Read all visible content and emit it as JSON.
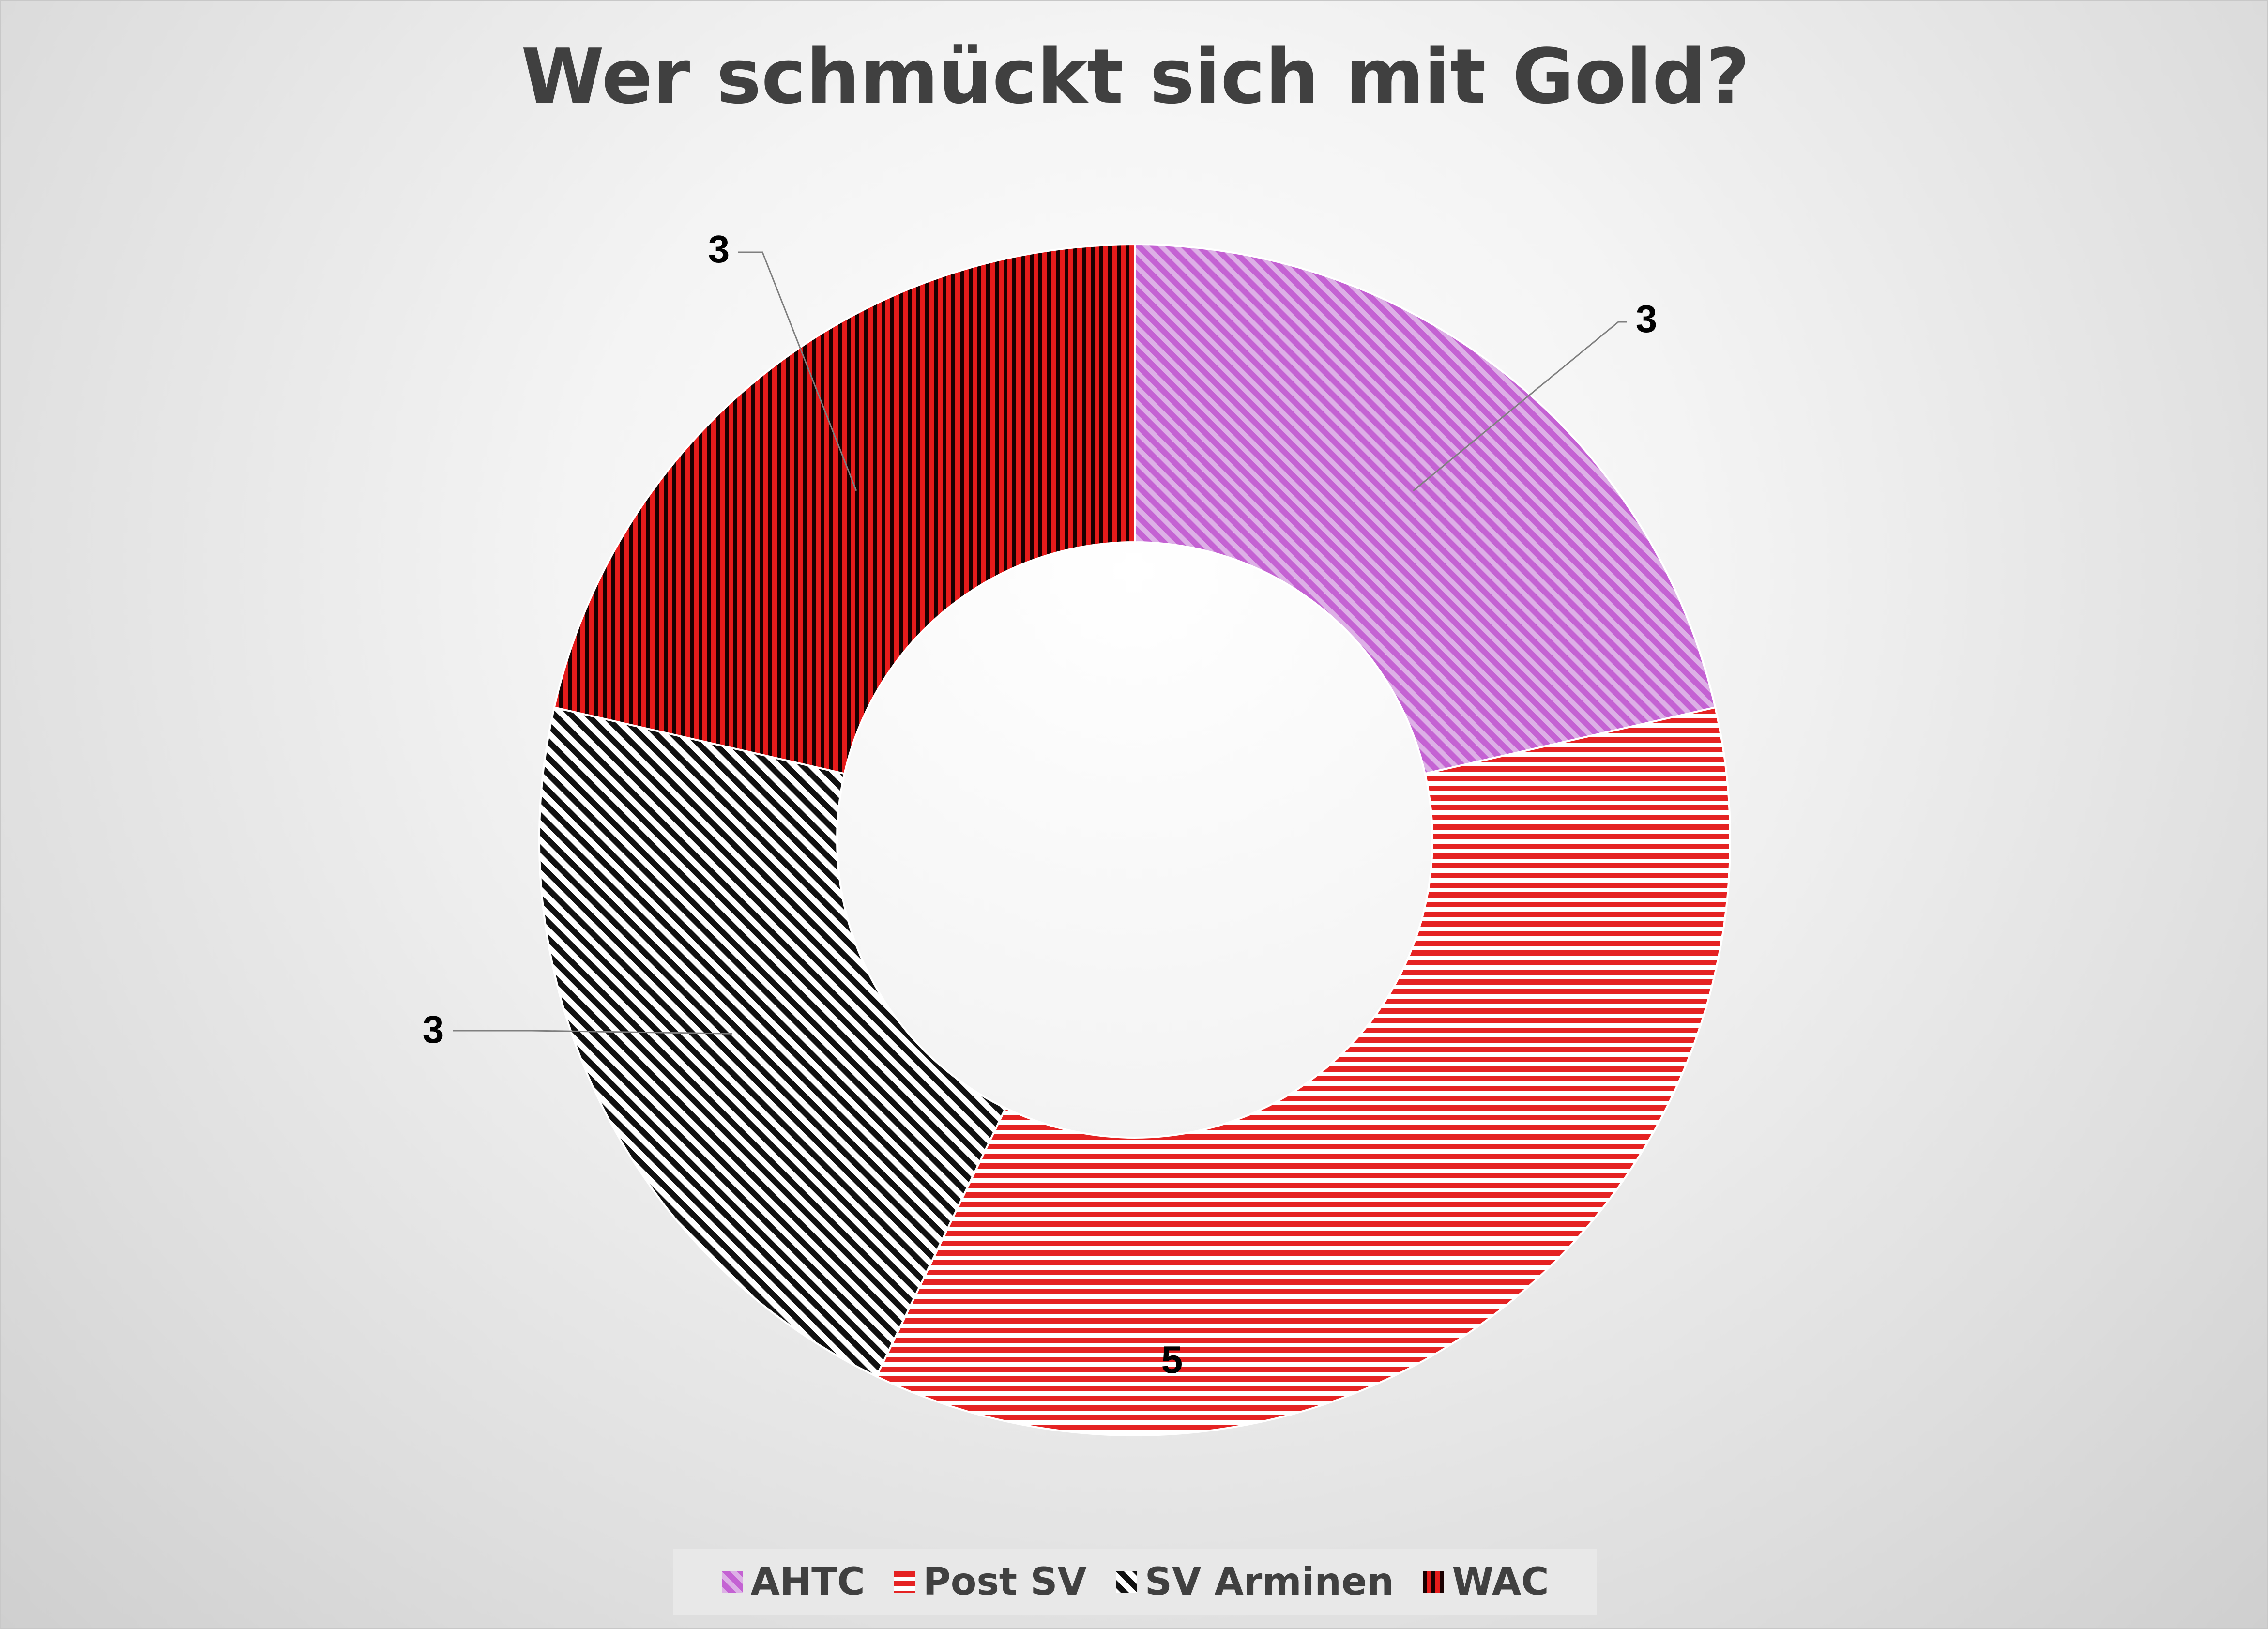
{
  "chart_data": {
    "type": "pie",
    "variant": "doughnut",
    "title": "Wer schmückt sich mit Gold?",
    "categories": [
      "AHTC",
      "Post SV",
      "SV Arminen",
      "WAC"
    ],
    "values": [
      3,
      5,
      3,
      3
    ],
    "data_labels": [
      "3",
      "5",
      "3",
      "3"
    ],
    "colors": [
      "#c462d3",
      "#e52222",
      "#111111",
      "#b00000"
    ],
    "patterns": [
      "diagonal",
      "horizontal",
      "diagonal",
      "vertical"
    ],
    "start_angle_deg": 0,
    "direction": "clockwise",
    "legend_position": "bottom",
    "grid": false
  },
  "legend": {
    "items": [
      {
        "label": "AHTC"
      },
      {
        "label": "Post SV"
      },
      {
        "label": "SV Arminen"
      },
      {
        "label": "WAC"
      }
    ]
  }
}
